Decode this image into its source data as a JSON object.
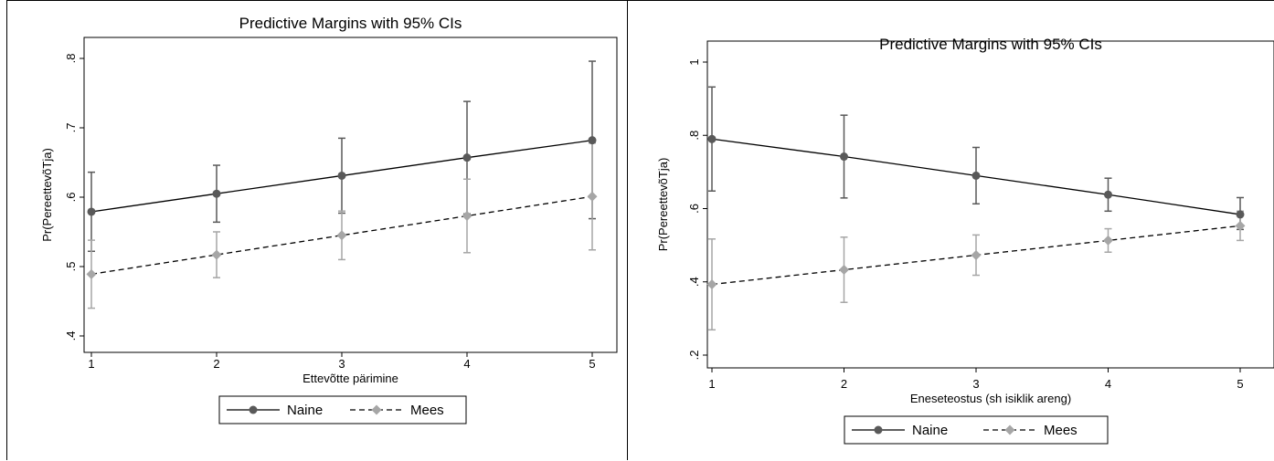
{
  "chart_data": [
    {
      "type": "line",
      "title": "Predictive Margins with 95% CIs",
      "xlabel": "Ettevõtte pärimine",
      "ylabel": "Pr(PereettevõTja)",
      "x": [
        1,
        2,
        3,
        4,
        5
      ],
      "xticks": [
        "1",
        "2",
        "3",
        "4",
        "5"
      ],
      "yticks": [
        ".4",
        ".5",
        ".6",
        ".7",
        ".8"
      ],
      "ylim": [
        0.4,
        0.8
      ],
      "series": [
        {
          "name": "Naine",
          "values": [
            0.579,
            0.605,
            0.631,
            0.657,
            0.682
          ],
          "ci_low": [
            0.522,
            0.564,
            0.577,
            0.576,
            0.569
          ],
          "ci_high": [
            0.636,
            0.646,
            0.685,
            0.738,
            0.796
          ]
        },
        {
          "name": "Mees",
          "values": [
            0.489,
            0.517,
            0.545,
            0.573,
            0.601
          ],
          "ci_low": [
            0.44,
            0.484,
            0.51,
            0.52,
            0.524
          ],
          "ci_high": [
            0.538,
            0.55,
            0.58,
            0.626,
            0.678
          ]
        }
      ],
      "legend": "bottom",
      "colors": {
        "naine": "#595959",
        "mees": "#a6a6a6"
      }
    },
    {
      "type": "line",
      "title": "Predictive Margins with 95% CIs",
      "xlabel": "Eneseteostus (sh isiklik areng)",
      "ylabel": "Pr(PereettevõTja)",
      "x": [
        1,
        2,
        3,
        4,
        5
      ],
      "xticks": [
        "1",
        "2",
        "3",
        "4",
        "5"
      ],
      "yticks": [
        ".2",
        ".4",
        ".6",
        ".8",
        "1"
      ],
      "ylim": [
        0.2,
        1.0
      ],
      "series": [
        {
          "name": "Naine",
          "values": [
            0.79,
            0.742,
            0.69,
            0.638,
            0.584
          ],
          "ci_low": [
            0.648,
            0.629,
            0.613,
            0.593,
            0.543
          ],
          "ci_high": [
            0.932,
            0.855,
            0.767,
            0.683,
            0.63
          ]
        },
        {
          "name": "Mees",
          "values": [
            0.393,
            0.433,
            0.473,
            0.513,
            0.553
          ],
          "ci_low": [
            0.269,
            0.344,
            0.418,
            0.481,
            0.513
          ],
          "ci_high": [
            0.517,
            0.522,
            0.528,
            0.545,
            0.593
          ]
        }
      ],
      "legend": "bottom",
      "colors": {
        "naine": "#595959",
        "mees": "#a6a6a6"
      }
    }
  ]
}
